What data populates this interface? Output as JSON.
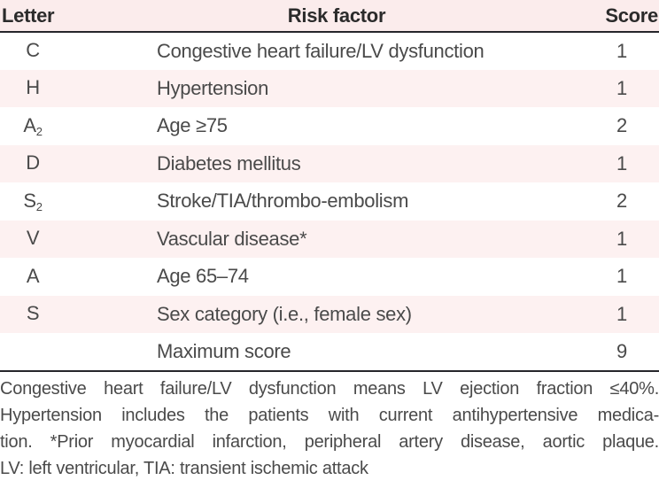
{
  "table": {
    "columns": {
      "letter": "Letter",
      "risk_factor": "Risk factor",
      "score": "Score"
    },
    "rows": [
      {
        "letter": "C",
        "letter_sub": "",
        "risk": "Congestive heart failure/LV dysfunction",
        "score": "1"
      },
      {
        "letter": "H",
        "letter_sub": "",
        "risk": "Hypertension",
        "score": "1"
      },
      {
        "letter": "A",
        "letter_sub": "2",
        "risk": "Age ≥75",
        "score": "2"
      },
      {
        "letter": "D",
        "letter_sub": "",
        "risk": "Diabetes mellitus",
        "score": "1"
      },
      {
        "letter": "S",
        "letter_sub": "2",
        "risk": "Stroke/TIA/thrombo-embolism",
        "score": "2"
      },
      {
        "letter": "V",
        "letter_sub": "",
        "risk": "Vascular disease*",
        "score": "1"
      },
      {
        "letter": "A",
        "letter_sub": "",
        "risk": "Age 65–74",
        "score": "1"
      },
      {
        "letter": "S",
        "letter_sub": "",
        "risk": "Sex category (i.e., female sex)",
        "score": "1"
      },
      {
        "letter": "",
        "letter_sub": "",
        "risk": "Maximum score",
        "score": "9"
      }
    ]
  },
  "footnote": {
    "lines": [
      "Congestive heart failure/LV dysfunction means LV ejection fraction ≤40%.",
      "Hypertension includes the patients with current antihypertensive medica-",
      "tion. *Prior myocardial infarction, peripheral artery disease, aortic plaque.",
      "LV: left ventricular, TIA: transient ischemic attack"
    ],
    "full_text": "Congestive heart failure/LV dysfunction means LV ejection fraction ≤40%. Hypertension includes the patients with current antihypertensive medication. *Prior myocardial infarction, peripheral artery disease, aortic plaque. LV: left ventricular, TIA: transient ischemic attack"
  },
  "colors": {
    "header_bg": "#fbecec",
    "stripe_bg": "#fdf1f1",
    "rule": "#26262b",
    "text": "#4a4a4a",
    "header_text": "#2b2b2b"
  }
}
